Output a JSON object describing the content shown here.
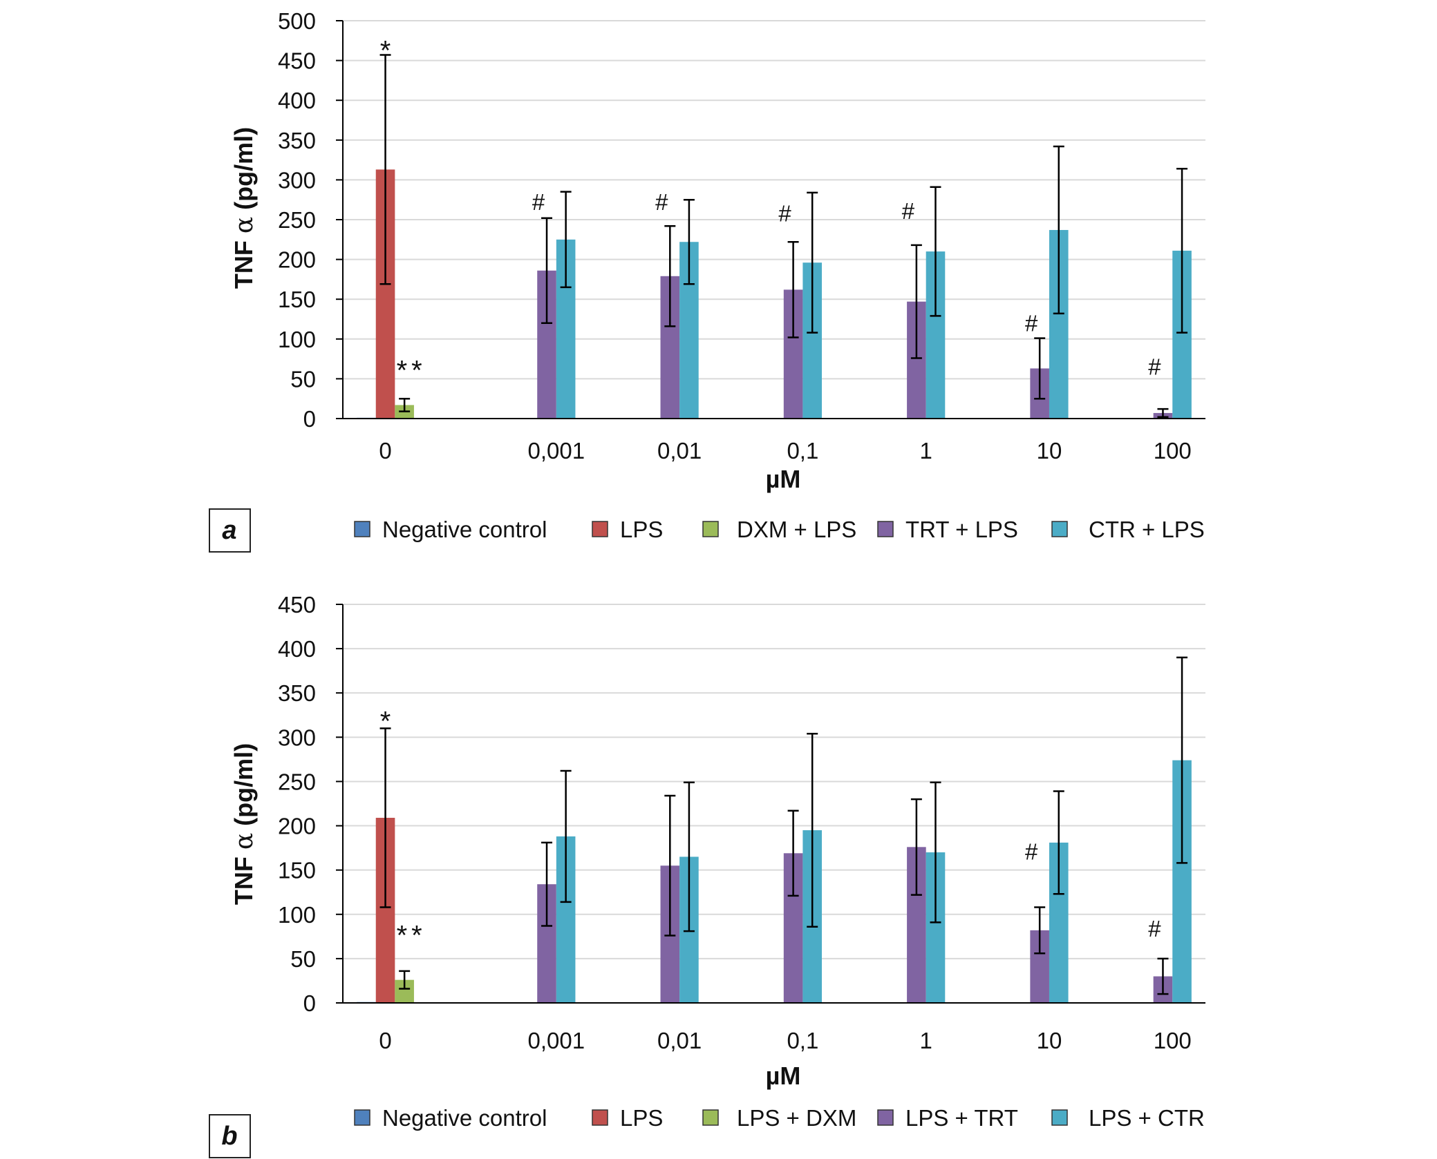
{
  "panels": [
    {
      "letter": "a",
      "ylabel_prefix": "TNF ",
      "ylabel_greek": "α",
      "ylabel_suffix": " (pg/ml)",
      "xlabel": "µM",
      "legend": [
        "Negative control",
        "LPS",
        "DXM + LPS",
        "TRT + LPS",
        "CTR + LPS"
      ]
    },
    {
      "letter": "b",
      "ylabel_prefix": "TNF ",
      "ylabel_greek": "α",
      "ylabel_suffix": " (pg/ml)",
      "xlabel": "µM",
      "legend": [
        "Negative control",
        "LPS",
        "LPS + DXM",
        "LPS + TRT",
        "LPS + CTR"
      ]
    }
  ],
  "colors": {
    "negative_control": "#4f81bd",
    "lps": "#c0504d",
    "dxm": "#9bbb59",
    "trt": "#8064a2",
    "ctr": "#4bacc6",
    "grid": "#d9d9d9",
    "axis": "#000000"
  },
  "chart_data": [
    {
      "type": "bar",
      "title": "",
      "panel": "a",
      "xlabel": "µM",
      "ylabel": "TNF α (pg/ml)",
      "ylim": [
        0,
        500
      ],
      "yticks": [
        0,
        50,
        100,
        150,
        200,
        250,
        300,
        350,
        400,
        450,
        500
      ],
      "grid": true,
      "legend_position": "bottom",
      "categories": [
        "0",
        "0,001",
        "0,01",
        "0,1",
        "1",
        "10",
        "100"
      ],
      "series": [
        {
          "name": "Negative control",
          "color_key": "negative_control",
          "values": [
            1,
            null,
            null,
            null,
            null,
            null,
            null
          ],
          "errors": [
            0,
            null,
            null,
            null,
            null,
            null,
            null
          ]
        },
        {
          "name": "LPS",
          "color_key": "lps",
          "values": [
            313,
            null,
            null,
            null,
            null,
            null,
            null
          ],
          "errors": [
            144,
            null,
            null,
            null,
            null,
            null,
            null
          ]
        },
        {
          "name": "DXM + LPS",
          "color_key": "dxm",
          "values": [
            17,
            null,
            null,
            null,
            null,
            null,
            null
          ],
          "errors": [
            8,
            null,
            null,
            null,
            null,
            null,
            null
          ]
        },
        {
          "name": "TRT + LPS",
          "color_key": "trt",
          "values": [
            null,
            186,
            179,
            162,
            147,
            63,
            7
          ],
          "errors": [
            null,
            66,
            63,
            60,
            71,
            38,
            5
          ]
        },
        {
          "name": "CTR + LPS",
          "color_key": "ctr",
          "values": [
            null,
            225,
            222,
            196,
            210,
            237,
            211
          ],
          "errors": [
            null,
            60,
            53,
            88,
            81,
            105,
            103
          ]
        }
      ],
      "annotations": [
        {
          "text": "*",
          "series": 1,
          "category": 0,
          "y": 470
        },
        {
          "text": "**",
          "series": 2,
          "category": 0,
          "y": 68
        },
        {
          "text": "#",
          "series": 3,
          "category": 1,
          "y": 262
        },
        {
          "text": "#",
          "series": 3,
          "category": 2,
          "y": 262
        },
        {
          "text": "#",
          "series": 3,
          "category": 3,
          "y": 248
        },
        {
          "text": "#",
          "series": 3,
          "category": 4,
          "y": 251
        },
        {
          "text": "#",
          "series": 3,
          "category": 5,
          "y": 110
        },
        {
          "text": "#",
          "series": 3,
          "category": 6,
          "y": 55
        }
      ]
    },
    {
      "type": "bar",
      "title": "",
      "panel": "b",
      "xlabel": "µM",
      "ylabel": "TNF α (pg/ml)",
      "ylim": [
        0,
        450
      ],
      "yticks": [
        0,
        50,
        100,
        150,
        200,
        250,
        300,
        350,
        400,
        450
      ],
      "grid": true,
      "legend_position": "bottom",
      "categories": [
        "0",
        "0,001",
        "0,01",
        "0,1",
        "1",
        "10",
        "100"
      ],
      "series": [
        {
          "name": "Negative control",
          "color_key": "negative_control",
          "values": [
            1,
            null,
            null,
            null,
            null,
            null,
            null
          ],
          "errors": [
            0,
            null,
            null,
            null,
            null,
            null,
            null
          ]
        },
        {
          "name": "LPS",
          "color_key": "lps",
          "values": [
            209,
            null,
            null,
            null,
            null,
            null,
            null
          ],
          "errors": [
            101,
            null,
            null,
            null,
            null,
            null,
            null
          ]
        },
        {
          "name": "LPS + DXM",
          "color_key": "dxm",
          "values": [
            26,
            null,
            null,
            null,
            null,
            null,
            null
          ],
          "errors": [
            10,
            null,
            null,
            null,
            null,
            null,
            null
          ]
        },
        {
          "name": "LPS + TRT",
          "color_key": "trt",
          "values": [
            null,
            134,
            155,
            169,
            176,
            82,
            30
          ],
          "errors": [
            null,
            47,
            79,
            48,
            54,
            26,
            20
          ]
        },
        {
          "name": "LPS + CTR",
          "color_key": "ctr",
          "values": [
            null,
            188,
            165,
            195,
            170,
            181,
            274
          ],
          "errors": [
            null,
            74,
            84,
            109,
            79,
            58,
            116
          ]
        }
      ],
      "annotations": [
        {
          "text": "*",
          "series": 1,
          "category": 0,
          "y": 325
        },
        {
          "text": "**",
          "series": 2,
          "category": 0,
          "y": 83
        },
        {
          "text": "#",
          "series": 3,
          "category": 5,
          "y": 162
        },
        {
          "text": "#",
          "series": 3,
          "category": 6,
          "y": 75
        }
      ]
    }
  ]
}
